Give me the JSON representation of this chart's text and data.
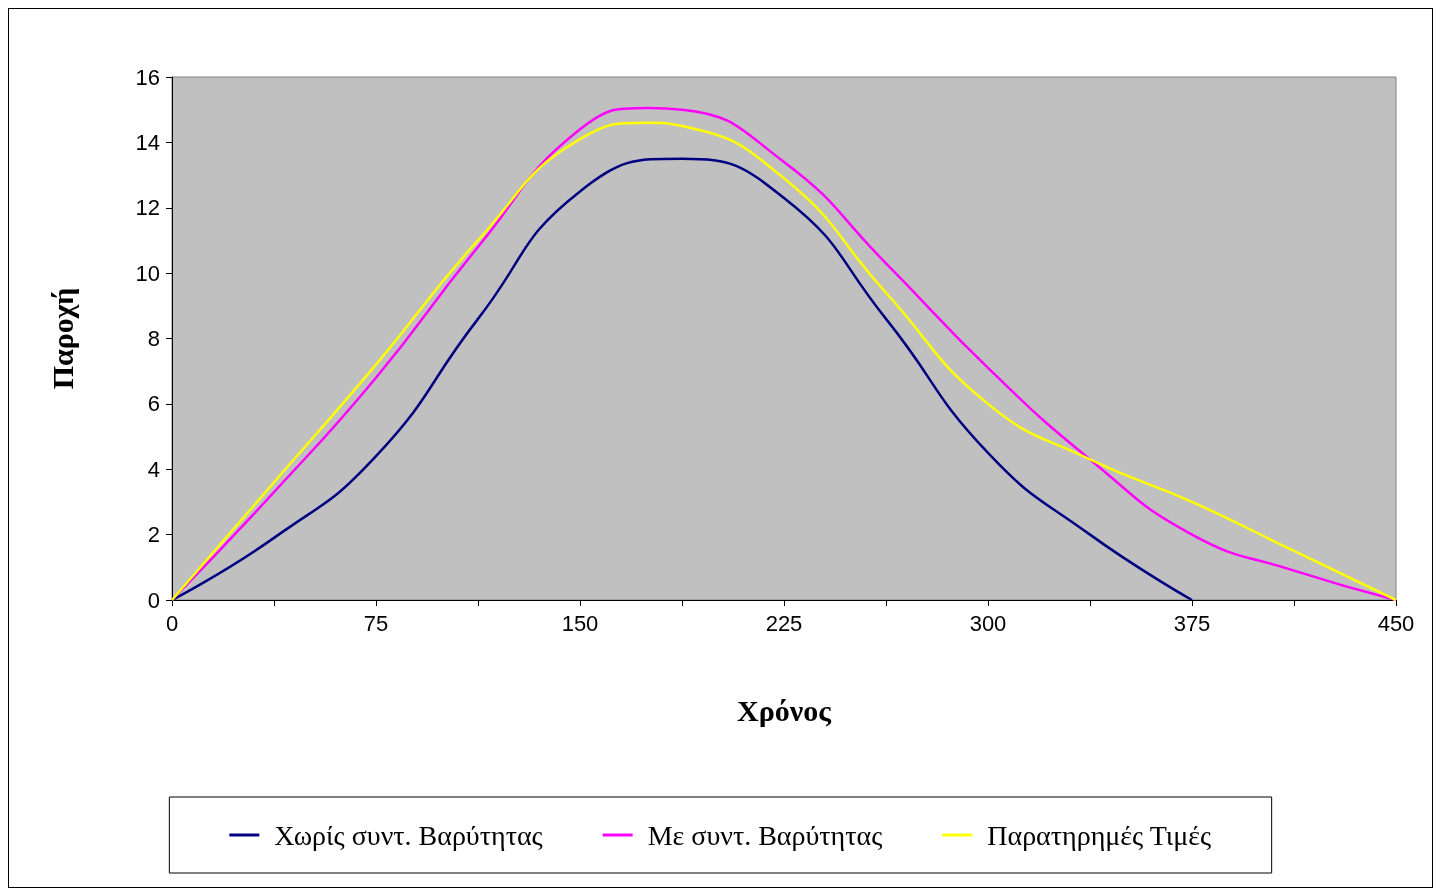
{
  "chart_data": {
    "type": "line",
    "xlabel": "Χρόνος",
    "ylabel": "Παροχή",
    "xlim": [
      0,
      450
    ],
    "xticks": [
      0,
      {
        "value": 37.5,
        "label": null
      },
      75,
      {
        "value": 112.5,
        "label": null
      },
      150,
      {
        "value": 187.5,
        "label": null
      },
      225,
      {
        "value": 262.5,
        "label": null
      },
      300,
      {
        "value": 337.5,
        "label": null
      },
      375,
      {
        "value": 412.5,
        "label": null
      },
      450
    ],
    "ylim": [
      0,
      16
    ],
    "yticks": [
      0,
      2,
      4,
      6,
      8,
      10,
      12,
      14,
      16
    ],
    "grid": false,
    "legend": "bottom",
    "marker": "none",
    "line_style": "solid",
    "series": [
      {
        "name": "Χωρίς συντ. Βαρύτητας",
        "color": "#000080",
        "x": [
          0,
          37.5,
          75,
          112.5,
          150,
          187.5,
          225,
          262.5,
          300,
          337.5,
          375
        ],
        "values": [
          0,
          1.9,
          4.4,
          8.6,
          12.5,
          13.5,
          12.3,
          8.6,
          4.5,
          2.0,
          0
        ]
      },
      {
        "name": "Με συντ. Βαρύτητας",
        "color": "#ff00ff",
        "x": [
          0,
          37.5,
          75,
          112.5,
          150,
          175,
          187.5,
          225,
          262.5,
          300,
          337.5,
          375,
          412.5,
          450
        ],
        "values": [
          0,
          3.3,
          6.8,
          10.8,
          14.4,
          15.05,
          15.0,
          13.4,
          10.3,
          7.1,
          4.3,
          2.0,
          0.9,
          0
        ]
      },
      {
        "name": "Παρατηρημές Τιμές",
        "color": "#ffff00",
        "x": [
          0,
          37.5,
          75,
          112.5,
          150,
          175,
          187.5,
          225,
          262.5,
          300,
          337.5,
          375,
          412.5,
          450
        ],
        "values": [
          0,
          3.6,
          7.2,
          11.0,
          14.1,
          14.6,
          14.5,
          12.9,
          9.4,
          6.0,
          4.3,
          3.0,
          1.5,
          0
        ]
      }
    ]
  }
}
